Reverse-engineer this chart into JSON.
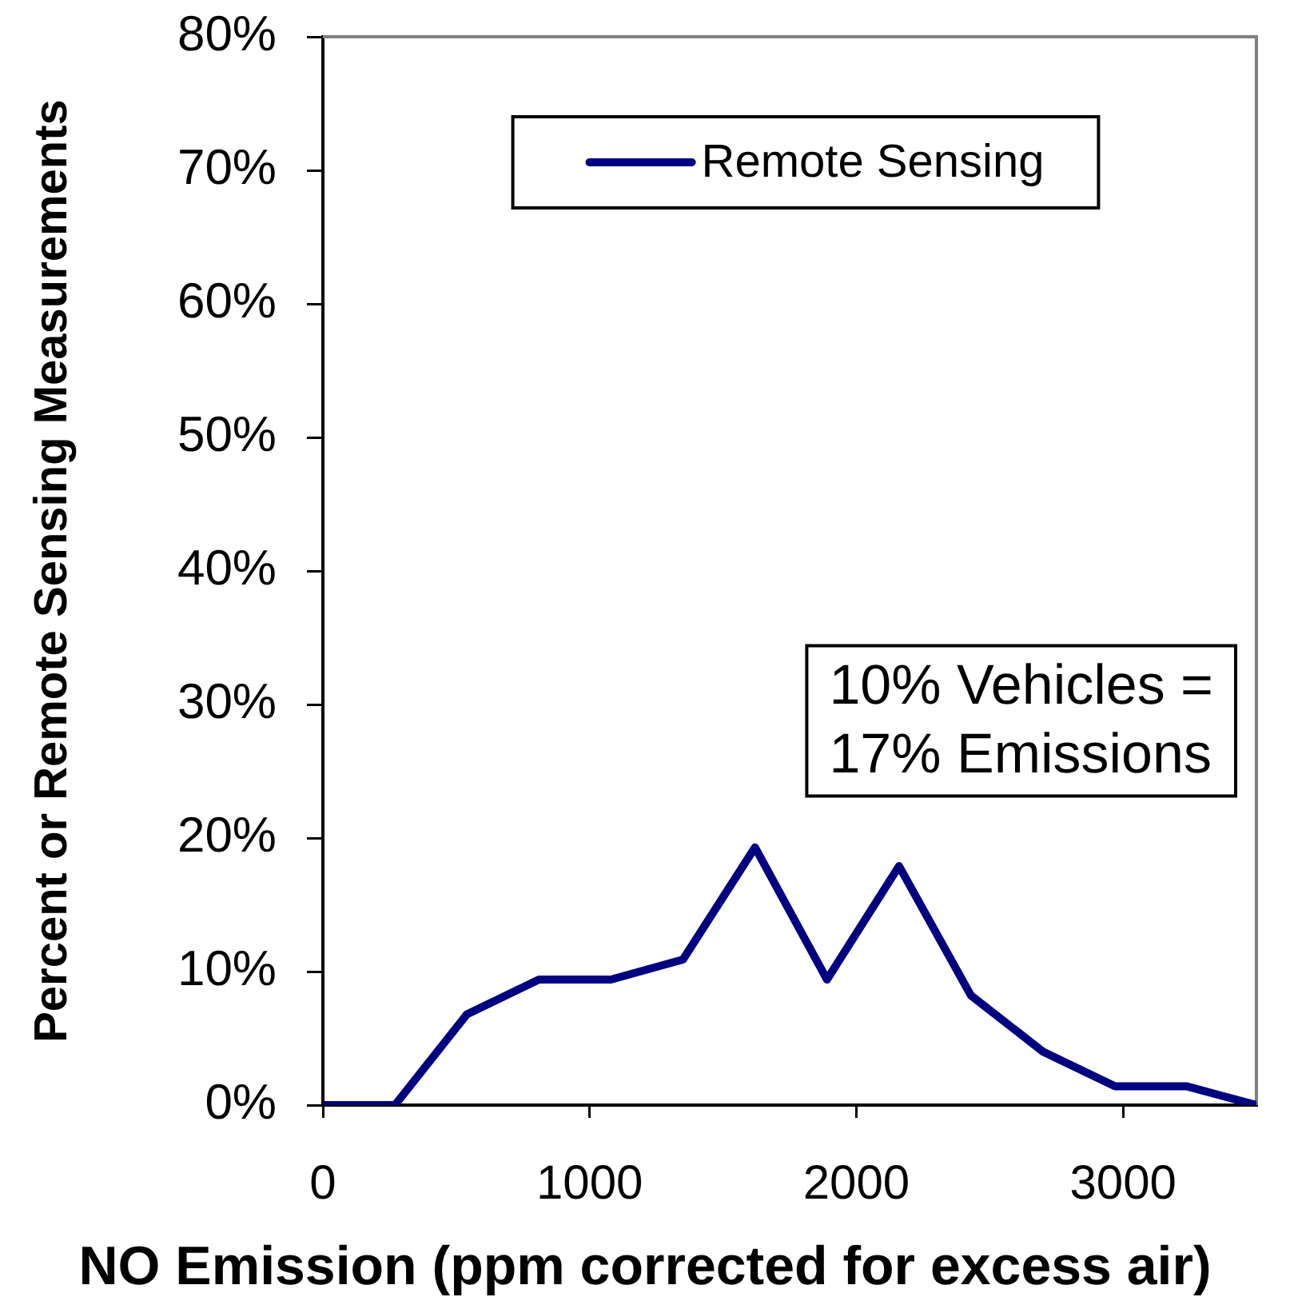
{
  "chart_data": {
    "type": "line",
    "xlabel": "NO Emission (ppm corrected for excess air)",
    "ylabel": "Percent or Remote Sensing Measurements",
    "x": [
      0,
      270,
      540,
      810,
      1080,
      1350,
      1620,
      1890,
      2160,
      2430,
      2700,
      2970,
      3240,
      3500
    ],
    "series": [
      {
        "name": "Remote Sensing",
        "color": "#000080",
        "values": [
          0,
          0,
          6.8,
          9.4,
          9.4,
          10.9,
          19.3,
          9.4,
          17.9,
          8.2,
          4.0,
          1.4,
          1.4,
          0
        ]
      }
    ],
    "xlim": [
      0,
      3500
    ],
    "xticks": [
      0,
      1000,
      2000,
      3000
    ],
    "ylim": [
      0,
      80
    ],
    "yticks": [
      {
        "value": 0,
        "label": "0%"
      },
      {
        "value": 10,
        "label": "10%"
      },
      {
        "value": 20,
        "label": "20%"
      },
      {
        "value": 30,
        "label": "30%"
      },
      {
        "value": 40,
        "label": "40%"
      },
      {
        "value": 50,
        "label": "50%"
      },
      {
        "value": 60,
        "label": "60%"
      },
      {
        "value": 70,
        "label": "70%"
      },
      {
        "value": 80,
        "label": "80%"
      }
    ],
    "grid": false,
    "legend": "top",
    "marker": "none",
    "line_style": "solid",
    "annotations": [
      "10% Vehicles =\n17% Emissions"
    ]
  }
}
